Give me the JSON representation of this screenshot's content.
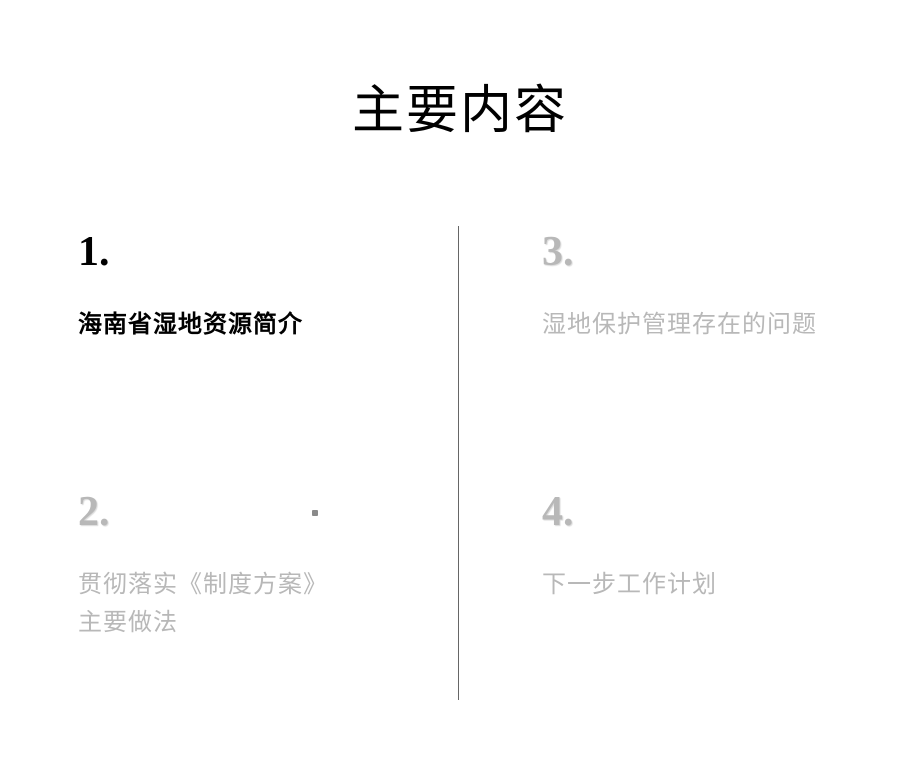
{
  "title": "主要内容",
  "sections": [
    {
      "number": "1.",
      "label": "海南省湿地资源简介",
      "active": true
    },
    {
      "number": "2.",
      "label_line1": "贯彻落实《制度方案》",
      "label_line2": "主要做法",
      "active": false
    },
    {
      "number": "3.",
      "label": "湿地保护管理存在的问题",
      "active": false
    },
    {
      "number": "4.",
      "label": "下一步工作计划",
      "active": false
    }
  ],
  "colors": {
    "background": "#ffffff",
    "active_text": "#000000",
    "inactive_text": "#b8b8b8",
    "divider": "#666666"
  },
  "typography": {
    "title_fontsize": 52,
    "number_fontsize": 42,
    "label_fontsize": 24
  }
}
